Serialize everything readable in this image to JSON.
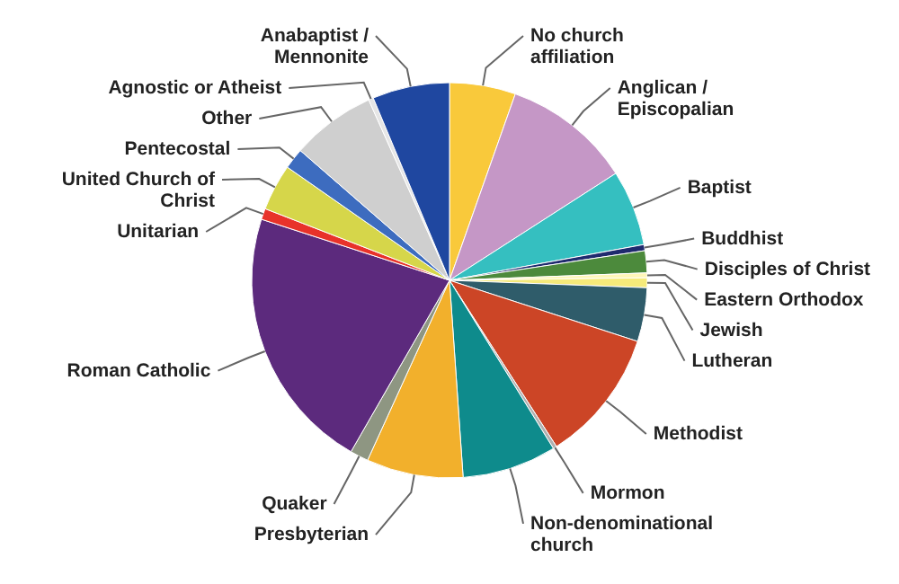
{
  "chart_data": {
    "type": "pie",
    "categories": [
      "No church affiliation",
      "Anglican / Episcopalian",
      "Baptist",
      "Buddhist",
      "Disciples of Christ",
      "Eastern Orthodox",
      "Jewish",
      "Lutheran",
      "Methodist",
      "Mormon",
      "Non-denominational church",
      "Presbyterian",
      "Quaker",
      "Roman Catholic",
      "Unitarian",
      "United Church of Christ",
      "Pentecostal",
      "Other",
      "Agnostic or Atheist",
      "Anabaptist / Mennonite"
    ],
    "values": [
      5.4,
      10.5,
      6.2,
      0.5,
      1.8,
      0.4,
      0.8,
      4.4,
      10.9,
      0.3,
      7.7,
      7.9,
      1.5,
      21.7,
      0.9,
      3.8,
      1.7,
      6.9,
      0.4,
      6.3
    ],
    "colors": [
      "#f9c93b",
      "#c597c6",
      "#35bfc0",
      "#1f2a6e",
      "#4c8a3c",
      "#fff6b8",
      "#f5ea7a",
      "#2f5c6a",
      "#cc4526",
      "#b0b0b0",
      "#0e8b8c",
      "#f2b02c",
      "#8e9682",
      "#5c2a7d",
      "#e8322a",
      "#d6d64a",
      "#3d6cbf",
      "#cfcfcf",
      "#e6e6e6",
      "#1f47a0"
    ]
  }
}
